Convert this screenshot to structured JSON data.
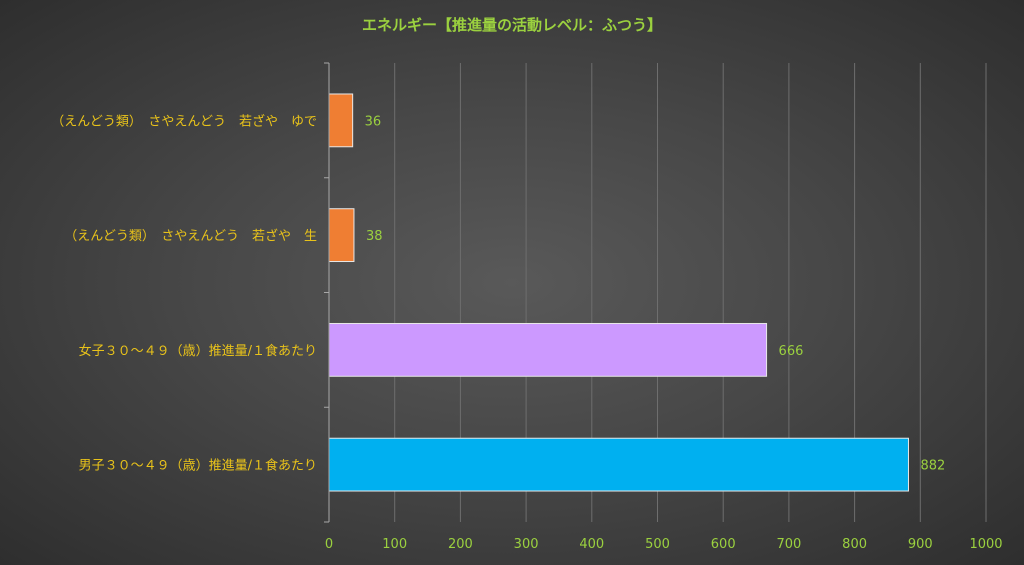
{
  "chart_data": {
    "type": "bar",
    "orientation": "horizontal",
    "title": "エネルギー【推進量の活動レベル：ふつう】",
    "categories": [
      "（えんどう類）　さやえんどう　若ざや　ゆで",
      "（えんどう類）　さやえんどう　若ざや　生",
      "女子３０～４９（歳）推進量/１食あたり",
      "男子３０～４９（歳）推進量/１食あたり"
    ],
    "values": [
      36,
      38,
      666,
      882
    ],
    "data_labels": [
      "36",
      "38",
      "666",
      "882"
    ],
    "bar_colors": [
      "#ef7e33",
      "#ef7e33",
      "#cc99ff",
      "#00b0f0"
    ],
    "xlim": [
      0,
      1000
    ],
    "xticks": [
      0,
      100,
      200,
      300,
      400,
      500,
      600,
      700,
      800,
      900,
      1000
    ],
    "grid": "vertical",
    "legend": "none",
    "text_colors": {
      "title": "#9bd13f",
      "categories": "#e8c21a",
      "ticks": "#9bd13f"
    }
  }
}
